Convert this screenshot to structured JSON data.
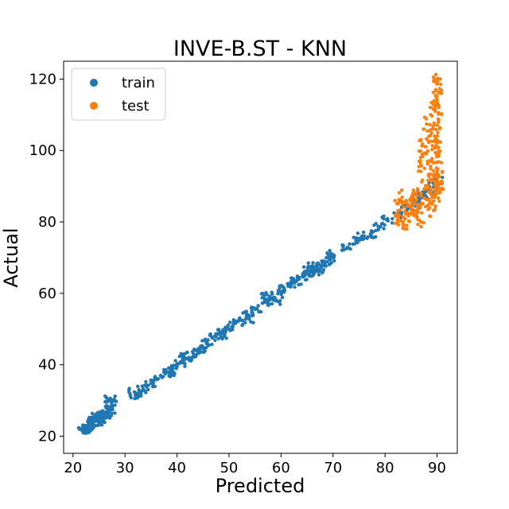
{
  "chart_data": {
    "type": "scatter",
    "title": "INVE-B.ST - KNN",
    "xlabel": "Predicted",
    "ylabel": "Actual",
    "xlim": [
      18.2,
      93.9
    ],
    "ylim": [
      15.2,
      125.0
    ],
    "xticks": [
      "20",
      "30",
      "40",
      "50",
      "60",
      "70",
      "80",
      "90"
    ],
    "yticks": [
      "20",
      "40",
      "60",
      "80",
      "100",
      "120"
    ],
    "grid": false,
    "legend_position": "upper-left",
    "series": [
      {
        "name": "train",
        "color": "#1f77b4",
        "points": [
          [
            21.8,
            21.5
          ],
          [
            22.1,
            22.3
          ],
          [
            22.6,
            21.9
          ],
          [
            23.0,
            23.1
          ],
          [
            23.4,
            22.7
          ],
          [
            23.9,
            23.8
          ],
          [
            24.3,
            24.2
          ],
          [
            24.8,
            24.9
          ],
          [
            25.2,
            25.3
          ],
          [
            25.7,
            25.8
          ],
          [
            26.1,
            26.4
          ],
          [
            26.6,
            26.9
          ],
          [
            27.0,
            27.5
          ],
          [
            27.4,
            29.2
          ],
          [
            24.1,
            25.6
          ],
          [
            25.4,
            24.0
          ],
          [
            22.9,
            22.0
          ],
          [
            26.3,
            25.1
          ],
          [
            32.0,
            31.5
          ],
          [
            33.5,
            33.2
          ],
          [
            35.0,
            34.8
          ],
          [
            36.4,
            36.1
          ],
          [
            37.8,
            37.6
          ],
          [
            39.2,
            39.0
          ],
          [
            40.5,
            40.4
          ],
          [
            41.8,
            41.7
          ],
          [
            43.1,
            43.2
          ],
          [
            44.4,
            44.6
          ],
          [
            45.8,
            46.1
          ],
          [
            47.2,
            47.9
          ],
          [
            48.5,
            49.0
          ],
          [
            49.8,
            50.2
          ],
          [
            50.9,
            51.5
          ],
          [
            51.6,
            52.1
          ],
          [
            53.5,
            54.1
          ],
          [
            55.2,
            55.8
          ],
          [
            56.8,
            57.5
          ],
          [
            58.1,
            58.7
          ],
          [
            59.4,
            59.9
          ],
          [
            60.6,
            61.4
          ],
          [
            61.8,
            62.5
          ],
          [
            63.0,
            63.4
          ],
          [
            64.2,
            64.6
          ],
          [
            65.4,
            65.9
          ],
          [
            66.5,
            66.8
          ],
          [
            67.6,
            67.9
          ],
          [
            68.5,
            68.7
          ],
          [
            69.3,
            69.6
          ],
          [
            72.8,
            72.9
          ],
          [
            74.9,
            74.8
          ],
          [
            77.2,
            76.6
          ],
          [
            78.9,
            78.5
          ],
          [
            80.4,
            80.6
          ],
          [
            82.7,
            82.2
          ],
          [
            84.3,
            84.0
          ],
          [
            85.9,
            85.4
          ],
          [
            87.2,
            86.8
          ],
          [
            88.6,
            88.3
          ],
          [
            89.5,
            90.1
          ],
          [
            90.0,
            91.5
          ],
          [
            59.0,
            57.9
          ],
          [
            62.5,
            63.8
          ],
          [
            66.0,
            67.7
          ],
          [
            67.2,
            66.1
          ],
          [
            57.3,
            59.6
          ],
          [
            49.1,
            48.3
          ],
          [
            38.6,
            38.1
          ],
          [
            41.2,
            42.5
          ],
          [
            27.2,
            30.6
          ],
          [
            31.8,
            32.4
          ],
          [
            45.2,
            44.7
          ],
          [
            53.9,
            52.8
          ],
          [
            64.9,
            66.3
          ],
          [
            69.8,
            71.0
          ],
          [
            75.6,
            76.1
          ],
          [
            86.5,
            87.9
          ]
        ]
      },
      {
        "name": "test",
        "color": "#ff7f0e",
        "points": [
          [
            82.0,
            81.6
          ],
          [
            82.5,
            85.2
          ],
          [
            83.0,
            80.3
          ],
          [
            83.6,
            84.1
          ],
          [
            84.2,
            79.0
          ],
          [
            84.8,
            86.3
          ],
          [
            85.3,
            82.8
          ],
          [
            85.8,
            88.1
          ],
          [
            86.3,
            84.5
          ],
          [
            86.7,
            80.4
          ],
          [
            87.0,
            95.7
          ],
          [
            87.2,
            101.8
          ],
          [
            87.5,
            86.7
          ],
          [
            87.8,
            90.2
          ],
          [
            88.0,
            107.4
          ],
          [
            88.3,
            83.5
          ],
          [
            88.5,
            97.1
          ],
          [
            88.7,
            104.2
          ],
          [
            88.9,
            89.2
          ],
          [
            89.1,
            85.0
          ],
          [
            89.3,
            111.6
          ],
          [
            89.5,
            93.4
          ],
          [
            89.6,
            100.7
          ],
          [
            89.7,
            87.4
          ],
          [
            89.8,
            105.9
          ],
          [
            89.9,
            95.1
          ],
          [
            90.0,
            118.6
          ],
          [
            90.0,
            114.3
          ],
          [
            90.1,
            102.5
          ],
          [
            90.1,
            120.2
          ],
          [
            90.2,
            89.6
          ],
          [
            90.2,
            108.8
          ],
          [
            90.3,
            98.4
          ],
          [
            90.3,
            116.1
          ],
          [
            90.4,
            92.7
          ],
          [
            90.4,
            88.1
          ],
          [
            86.0,
            83.2
          ],
          [
            84.5,
            82.4
          ],
          [
            83.3,
            86.9
          ],
          [
            87.6,
            99.3
          ],
          [
            89.0,
            91.8
          ],
          [
            90.1,
            112.5
          ]
        ]
      }
    ]
  }
}
